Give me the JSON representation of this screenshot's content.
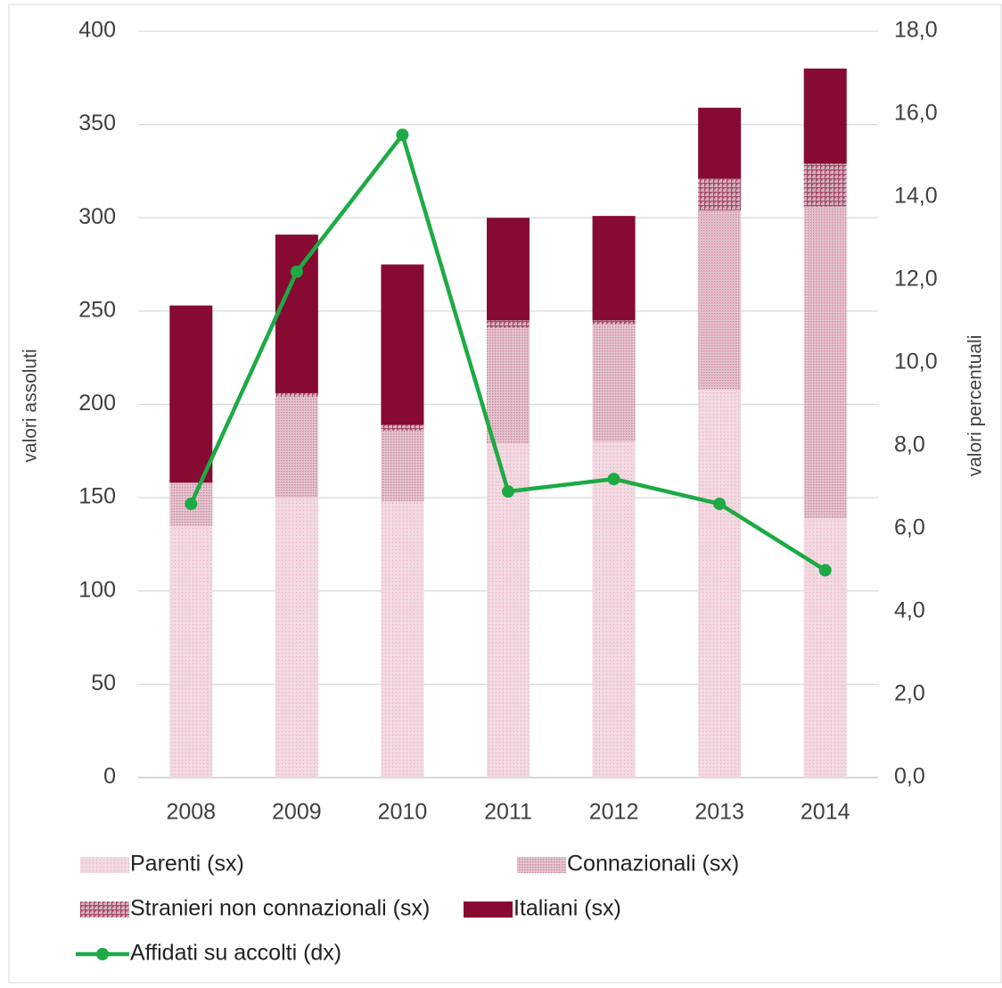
{
  "chart_data": {
    "type": "bar",
    "categories": [
      "2008",
      "2009",
      "2010",
      "2011",
      "2012",
      "2013",
      "2014"
    ],
    "series": [
      {
        "name": "Parenti (sx)",
        "color": "#e3a9bb",
        "values": [
          135,
          150,
          148,
          179,
          180,
          208,
          139
        ]
      },
      {
        "name": "Connazionali (sx)",
        "color": "#c7819a",
        "values": [
          23,
          54,
          38,
          62,
          63,
          96,
          167
        ]
      },
      {
        "name": "Stranieri non connazionali (sx)",
        "color": "#a24b6b",
        "values": [
          0,
          2,
          3,
          4,
          2,
          17,
          23
        ]
      },
      {
        "name": "Italiani (sx)",
        "color": "#860a32",
        "values": [
          95,
          85,
          86,
          55,
          56,
          38,
          51
        ]
      },
      {
        "name": "Affidati su accolti (dx)",
        "color": "#1daa45",
        "type": "line",
        "axis": "y2",
        "values": [
          6.6,
          12.2,
          15.5,
          6.9,
          7.2,
          6.6,
          5.0
        ]
      }
    ],
    "ylabel": "valori assoluti",
    "y2label": "valori percentuali",
    "ylim": [
      0,
      400
    ],
    "yticks": [
      0,
      50,
      100,
      150,
      200,
      250,
      300,
      350,
      400
    ],
    "y2lim": [
      0,
      18
    ],
    "y2ticks": [
      {
        "value": 0,
        "label": "0,0"
      },
      {
        "value": 2,
        "label": "2,0"
      },
      {
        "value": 4,
        "label": "4,0"
      },
      {
        "value": 6,
        "label": "6,0"
      },
      {
        "value": 8,
        "label": "8,0"
      },
      {
        "value": 10,
        "label": "10,0"
      },
      {
        "value": 12,
        "label": "12,0"
      },
      {
        "value": 14,
        "label": "14,0"
      },
      {
        "value": 16,
        "label": "16,0"
      },
      {
        "value": 18,
        "label": "18,0"
      }
    ],
    "grid": true,
    "stacked": true,
    "legend": "bottom"
  }
}
